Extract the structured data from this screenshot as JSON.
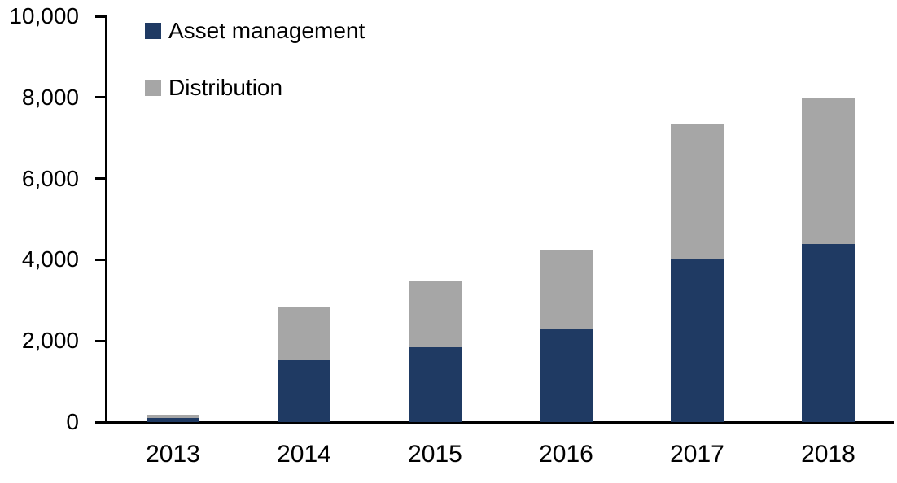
{
  "chart_data": {
    "type": "bar",
    "stacked": true,
    "title": "",
    "xlabel": "",
    "ylabel": "",
    "categories": [
      "2013",
      "2014",
      "2015",
      "2016",
      "2017",
      "2018"
    ],
    "series": [
      {
        "name": "Asset management",
        "color": "#1F3A63",
        "values": [
          100,
          1530,
          1850,
          2290,
          4030,
          4390
        ]
      },
      {
        "name": "Distribution",
        "color": "#A6A6A6",
        "values": [
          90,
          1320,
          1640,
          1930,
          3330,
          3590
        ]
      }
    ],
    "totals": [
      190,
      2850,
      3490,
      4220,
      7360,
      7980
    ],
    "ylim": [
      0,
      10000
    ],
    "y_ticks": [
      0,
      2000,
      4000,
      6000,
      8000,
      10000
    ],
    "y_tick_labels": [
      "0",
      "2,000",
      "4,000",
      "6,000",
      "8,000",
      "10,000"
    ],
    "grid": false,
    "legend_position": "top-left"
  },
  "colors": {
    "axis": "#000000",
    "text": "#000000",
    "background": "#FFFFFF"
  }
}
